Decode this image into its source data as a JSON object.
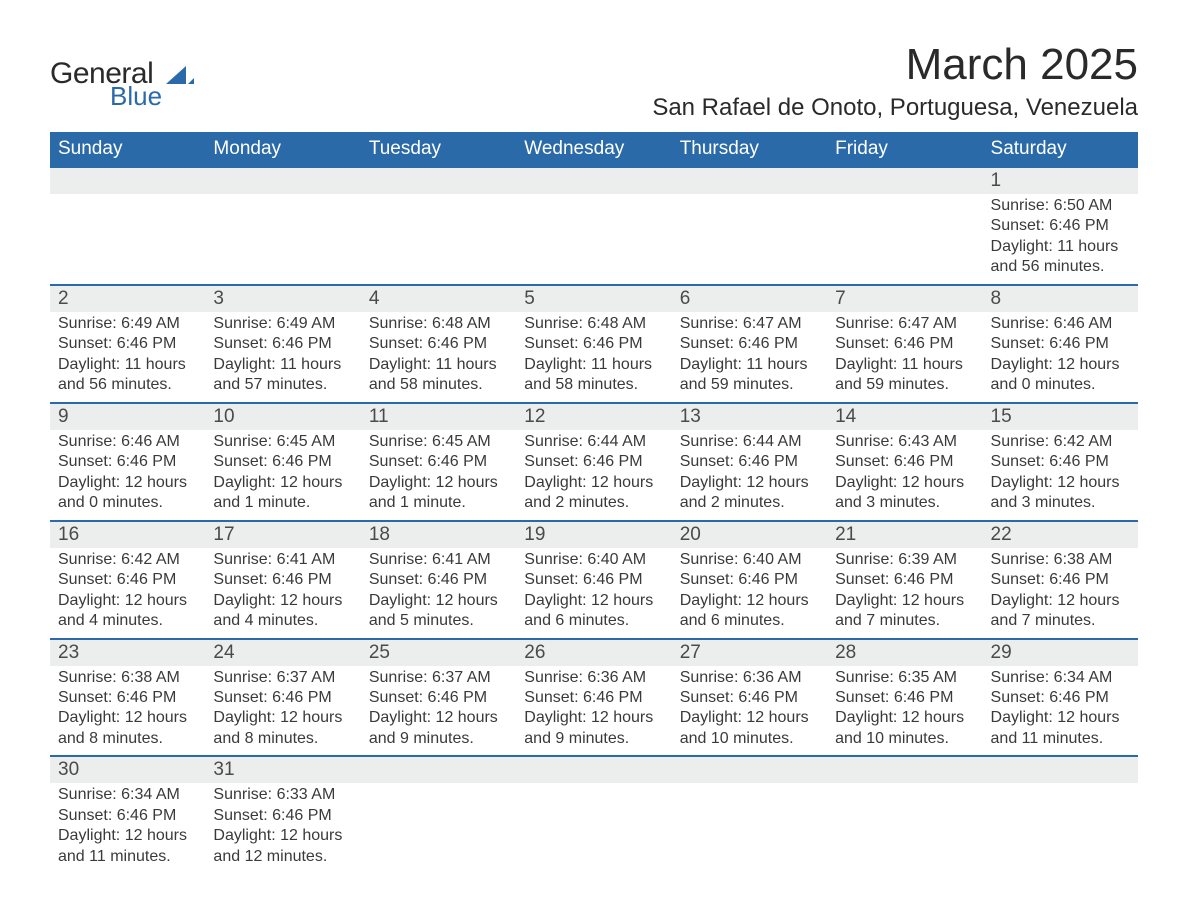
{
  "brand": {
    "line1": "General",
    "line2": "Blue",
    "text_color": "#2a2a2a",
    "accent_color": "#2b6aa8"
  },
  "header": {
    "title": "March 2025",
    "location": "San Rafael de Onoto, Portuguesa, Venezuela",
    "title_fontsize": 44,
    "location_fontsize": 24
  },
  "calendar": {
    "days_of_week": [
      "Sunday",
      "Monday",
      "Tuesday",
      "Wednesday",
      "Thursday",
      "Friday",
      "Saturday"
    ],
    "header_bg": "#2b6aa8",
    "header_text_color": "#ffffff",
    "daynum_bg": "#eceeee",
    "row_border_color": "#2b6aa8",
    "body_text_color": "#3a3a3a",
    "weeks": [
      [
        {
          "day": null
        },
        {
          "day": null
        },
        {
          "day": null
        },
        {
          "day": null
        },
        {
          "day": null
        },
        {
          "day": null
        },
        {
          "day": "1",
          "sunrise": "Sunrise: 6:50 AM",
          "sunset": "Sunset: 6:46 PM",
          "daylight1": "Daylight: 11 hours",
          "daylight2": "and 56 minutes."
        }
      ],
      [
        {
          "day": "2",
          "sunrise": "Sunrise: 6:49 AM",
          "sunset": "Sunset: 6:46 PM",
          "daylight1": "Daylight: 11 hours",
          "daylight2": "and 56 minutes."
        },
        {
          "day": "3",
          "sunrise": "Sunrise: 6:49 AM",
          "sunset": "Sunset: 6:46 PM",
          "daylight1": "Daylight: 11 hours",
          "daylight2": "and 57 minutes."
        },
        {
          "day": "4",
          "sunrise": "Sunrise: 6:48 AM",
          "sunset": "Sunset: 6:46 PM",
          "daylight1": "Daylight: 11 hours",
          "daylight2": "and 58 minutes."
        },
        {
          "day": "5",
          "sunrise": "Sunrise: 6:48 AM",
          "sunset": "Sunset: 6:46 PM",
          "daylight1": "Daylight: 11 hours",
          "daylight2": "and 58 minutes."
        },
        {
          "day": "6",
          "sunrise": "Sunrise: 6:47 AM",
          "sunset": "Sunset: 6:46 PM",
          "daylight1": "Daylight: 11 hours",
          "daylight2": "and 59 minutes."
        },
        {
          "day": "7",
          "sunrise": "Sunrise: 6:47 AM",
          "sunset": "Sunset: 6:46 PM",
          "daylight1": "Daylight: 11 hours",
          "daylight2": "and 59 minutes."
        },
        {
          "day": "8",
          "sunrise": "Sunrise: 6:46 AM",
          "sunset": "Sunset: 6:46 PM",
          "daylight1": "Daylight: 12 hours",
          "daylight2": "and 0 minutes."
        }
      ],
      [
        {
          "day": "9",
          "sunrise": "Sunrise: 6:46 AM",
          "sunset": "Sunset: 6:46 PM",
          "daylight1": "Daylight: 12 hours",
          "daylight2": "and 0 minutes."
        },
        {
          "day": "10",
          "sunrise": "Sunrise: 6:45 AM",
          "sunset": "Sunset: 6:46 PM",
          "daylight1": "Daylight: 12 hours",
          "daylight2": "and 1 minute."
        },
        {
          "day": "11",
          "sunrise": "Sunrise: 6:45 AM",
          "sunset": "Sunset: 6:46 PM",
          "daylight1": "Daylight: 12 hours",
          "daylight2": "and 1 minute."
        },
        {
          "day": "12",
          "sunrise": "Sunrise: 6:44 AM",
          "sunset": "Sunset: 6:46 PM",
          "daylight1": "Daylight: 12 hours",
          "daylight2": "and 2 minutes."
        },
        {
          "day": "13",
          "sunrise": "Sunrise: 6:44 AM",
          "sunset": "Sunset: 6:46 PM",
          "daylight1": "Daylight: 12 hours",
          "daylight2": "and 2 minutes."
        },
        {
          "day": "14",
          "sunrise": "Sunrise: 6:43 AM",
          "sunset": "Sunset: 6:46 PM",
          "daylight1": "Daylight: 12 hours",
          "daylight2": "and 3 minutes."
        },
        {
          "day": "15",
          "sunrise": "Sunrise: 6:42 AM",
          "sunset": "Sunset: 6:46 PM",
          "daylight1": "Daylight: 12 hours",
          "daylight2": "and 3 minutes."
        }
      ],
      [
        {
          "day": "16",
          "sunrise": "Sunrise: 6:42 AM",
          "sunset": "Sunset: 6:46 PM",
          "daylight1": "Daylight: 12 hours",
          "daylight2": "and 4 minutes."
        },
        {
          "day": "17",
          "sunrise": "Sunrise: 6:41 AM",
          "sunset": "Sunset: 6:46 PM",
          "daylight1": "Daylight: 12 hours",
          "daylight2": "and 4 minutes."
        },
        {
          "day": "18",
          "sunrise": "Sunrise: 6:41 AM",
          "sunset": "Sunset: 6:46 PM",
          "daylight1": "Daylight: 12 hours",
          "daylight2": "and 5 minutes."
        },
        {
          "day": "19",
          "sunrise": "Sunrise: 6:40 AM",
          "sunset": "Sunset: 6:46 PM",
          "daylight1": "Daylight: 12 hours",
          "daylight2": "and 6 minutes."
        },
        {
          "day": "20",
          "sunrise": "Sunrise: 6:40 AM",
          "sunset": "Sunset: 6:46 PM",
          "daylight1": "Daylight: 12 hours",
          "daylight2": "and 6 minutes."
        },
        {
          "day": "21",
          "sunrise": "Sunrise: 6:39 AM",
          "sunset": "Sunset: 6:46 PM",
          "daylight1": "Daylight: 12 hours",
          "daylight2": "and 7 minutes."
        },
        {
          "day": "22",
          "sunrise": "Sunrise: 6:38 AM",
          "sunset": "Sunset: 6:46 PM",
          "daylight1": "Daylight: 12 hours",
          "daylight2": "and 7 minutes."
        }
      ],
      [
        {
          "day": "23",
          "sunrise": "Sunrise: 6:38 AM",
          "sunset": "Sunset: 6:46 PM",
          "daylight1": "Daylight: 12 hours",
          "daylight2": "and 8 minutes."
        },
        {
          "day": "24",
          "sunrise": "Sunrise: 6:37 AM",
          "sunset": "Sunset: 6:46 PM",
          "daylight1": "Daylight: 12 hours",
          "daylight2": "and 8 minutes."
        },
        {
          "day": "25",
          "sunrise": "Sunrise: 6:37 AM",
          "sunset": "Sunset: 6:46 PM",
          "daylight1": "Daylight: 12 hours",
          "daylight2": "and 9 minutes."
        },
        {
          "day": "26",
          "sunrise": "Sunrise: 6:36 AM",
          "sunset": "Sunset: 6:46 PM",
          "daylight1": "Daylight: 12 hours",
          "daylight2": "and 9 minutes."
        },
        {
          "day": "27",
          "sunrise": "Sunrise: 6:36 AM",
          "sunset": "Sunset: 6:46 PM",
          "daylight1": "Daylight: 12 hours",
          "daylight2": "and 10 minutes."
        },
        {
          "day": "28",
          "sunrise": "Sunrise: 6:35 AM",
          "sunset": "Sunset: 6:46 PM",
          "daylight1": "Daylight: 12 hours",
          "daylight2": "and 10 minutes."
        },
        {
          "day": "29",
          "sunrise": "Sunrise: 6:34 AM",
          "sunset": "Sunset: 6:46 PM",
          "daylight1": "Daylight: 12 hours",
          "daylight2": "and 11 minutes."
        }
      ],
      [
        {
          "day": "30",
          "sunrise": "Sunrise: 6:34 AM",
          "sunset": "Sunset: 6:46 PM",
          "daylight1": "Daylight: 12 hours",
          "daylight2": "and 11 minutes."
        },
        {
          "day": "31",
          "sunrise": "Sunrise: 6:33 AM",
          "sunset": "Sunset: 6:46 PM",
          "daylight1": "Daylight: 12 hours",
          "daylight2": "and 12 minutes."
        },
        {
          "day": null
        },
        {
          "day": null
        },
        {
          "day": null
        },
        {
          "day": null
        },
        {
          "day": null
        }
      ]
    ]
  }
}
